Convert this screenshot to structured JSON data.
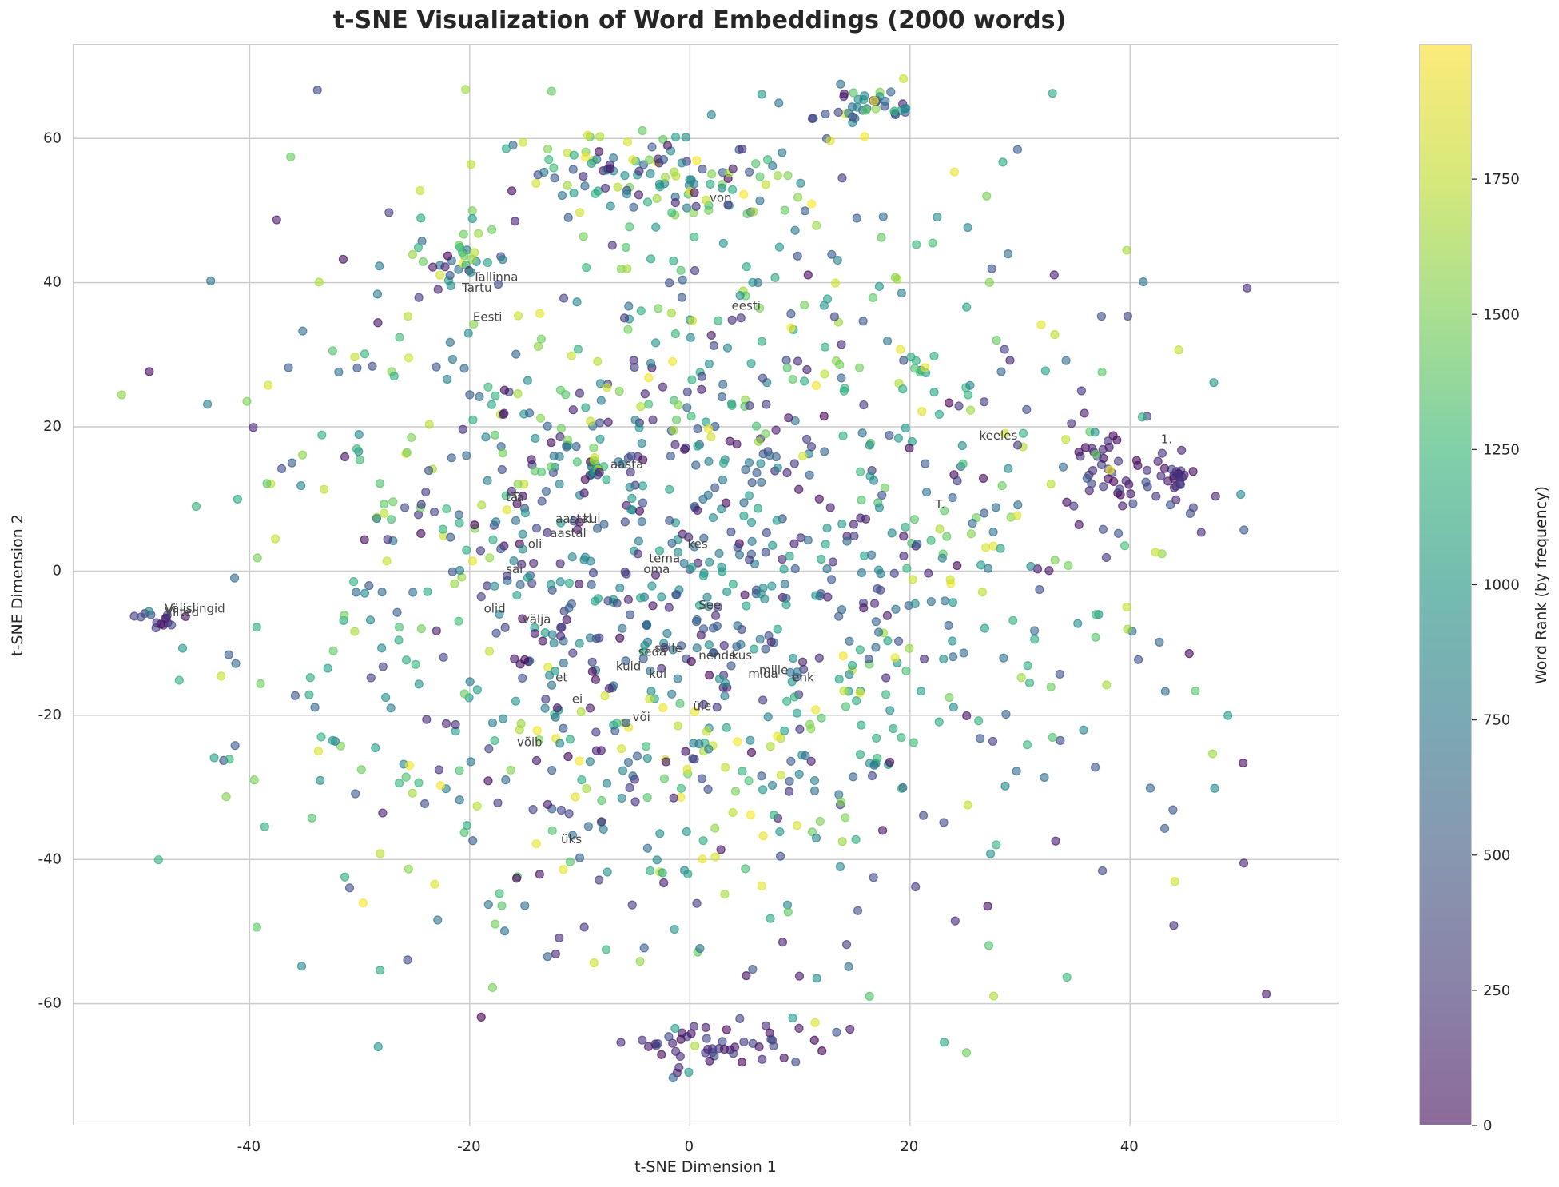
{
  "chart_data": {
    "type": "scatter",
    "title": "t-SNE Visualization of Word Embeddings (2000 words)",
    "xlabel": "t-SNE Dimension 1",
    "ylabel": "t-SNE Dimension 2",
    "xlim": [
      -56,
      59
    ],
    "ylim": [
      -77,
      73
    ],
    "xticks": [
      -40,
      -20,
      0,
      20,
      40
    ],
    "yticks": [
      60,
      40,
      20,
      0,
      -20,
      -40,
      -60
    ],
    "grid": true,
    "n_points": 2000,
    "colormap": "viridis",
    "colorbar": {
      "label": "Word Rank (by frequency)",
      "range": [
        0,
        2000
      ],
      "ticks": [
        0,
        250,
        500,
        750,
        1000,
        1250,
        1500,
        1750
      ]
    },
    "clusters": [
      {
        "x": 16,
        "y": 65,
        "rank": "mixed"
      },
      {
        "x": -8,
        "y": 58,
        "rank": "mixed"
      },
      {
        "x": 2,
        "y": 53,
        "rank": "mixed"
      },
      {
        "x": 3,
        "y": -66,
        "rank": "low"
      },
      {
        "x": 38,
        "y": 14,
        "rank": "low"
      },
      {
        "x": 43,
        "y": 13,
        "rank": "low"
      },
      {
        "x": -48,
        "y": -7,
        "rank": "low"
      },
      {
        "x": -21,
        "y": 43,
        "rank": "mixed"
      }
    ],
    "annotations": [
      {
        "text": "von",
        "x": 1.5,
        "y": 51
      },
      {
        "text": "Tallinna",
        "x": -20,
        "y": 40
      },
      {
        "text": "Tartu",
        "x": -21,
        "y": 38.5
      },
      {
        "text": "Eesti",
        "x": -20,
        "y": 34.5
      },
      {
        "text": "eesti",
        "x": 3.5,
        "y": 36
      },
      {
        "text": "keeles",
        "x": 26,
        "y": 18
      },
      {
        "text": "1.",
        "x": 42.5,
        "y": 17.5
      },
      {
        "text": "aasta",
        "x": -7.5,
        "y": 14
      },
      {
        "text": "ta",
        "x": -17,
        "y": 9.5
      },
      {
        "text": "Ta",
        "x": -16.5,
        "y": 9.5
      },
      {
        "text": "T.",
        "x": 22,
        "y": 8.5
      },
      {
        "text": "aastal",
        "x": -12.5,
        "y": 6.5
      },
      {
        "text": "kui",
        "x": -10,
        "y": 6.5
      },
      {
        "text": "aastal",
        "x": -13,
        "y": 4.5
      },
      {
        "text": "oli",
        "x": -15,
        "y": 3
      },
      {
        "text": "kes",
        "x": -0.5,
        "y": 3
      },
      {
        "text": "tema",
        "x": -4,
        "y": 1
      },
      {
        "text": "oma",
        "x": -4.5,
        "y": -0.5
      },
      {
        "text": "sai",
        "x": -17,
        "y": -0.5
      },
      {
        "text": "Välislingid",
        "x": -48,
        "y": -6
      },
      {
        "text": "Viited",
        "x": -48,
        "y": -6.5
      },
      {
        "text": "olid",
        "x": -19,
        "y": -6
      },
      {
        "text": "See",
        "x": 0.5,
        "y": -5.5
      },
      {
        "text": "välja",
        "x": -15.5,
        "y": -7.5
      },
      {
        "text": "selle",
        "x": -3.5,
        "y": -11.5
      },
      {
        "text": "seda",
        "x": -5,
        "y": -12
      },
      {
        "text": "nende",
        "x": 0.5,
        "y": -12.5
      },
      {
        "text": "kus",
        "x": 3.5,
        "y": -12.5
      },
      {
        "text": "kuid",
        "x": -7,
        "y": -14
      },
      {
        "text": "mille",
        "x": 6,
        "y": -14.5
      },
      {
        "text": "mida",
        "x": 5,
        "y": -15
      },
      {
        "text": "ehk",
        "x": 9,
        "y": -15.5
      },
      {
        "text": "kui",
        "x": -4,
        "y": -15
      },
      {
        "text": "et",
        "x": -12.5,
        "y": -15.5
      },
      {
        "text": "ei",
        "x": -11,
        "y": -18.5
      },
      {
        "text": "üle",
        "x": 0,
        "y": -19.5
      },
      {
        "text": "või",
        "x": -5.5,
        "y": -21
      },
      {
        "text": "võib",
        "x": -16,
        "y": -24.5
      },
      {
        "text": "üks",
        "x": -12,
        "y": -38
      }
    ]
  }
}
